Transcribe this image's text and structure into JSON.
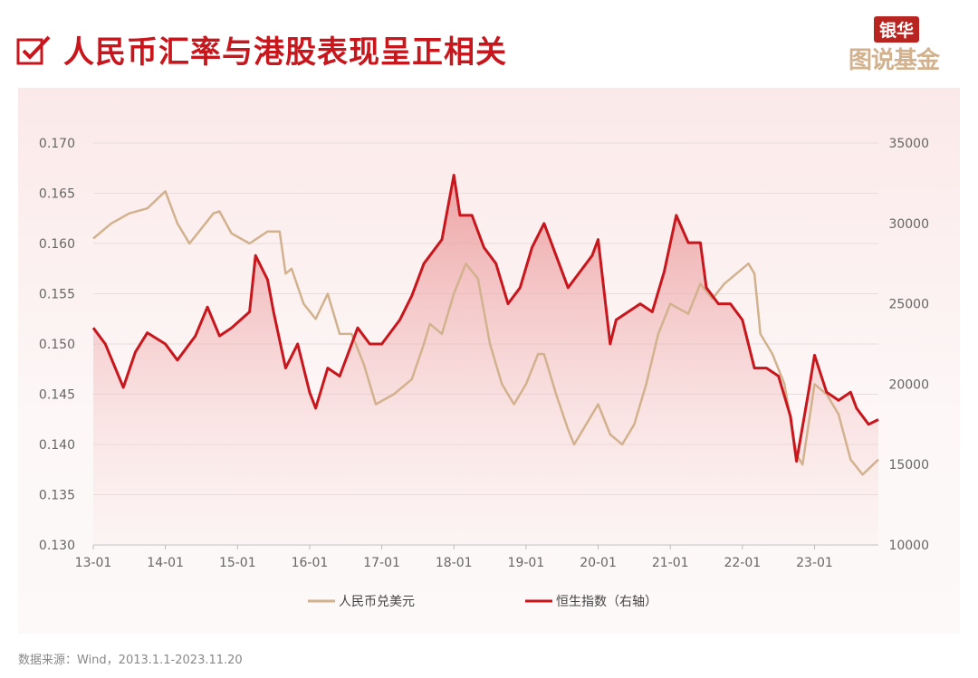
{
  "header": {
    "title": "人民币汇率与港股表现呈正相关",
    "icon": "checkbox-checked-icon",
    "logo_top": "银华",
    "logo_bottom": "图说基金"
  },
  "source": "数据来源：Wind，2013.1.1-2023.11.20",
  "colors": {
    "rmb": "#d2b28e",
    "hsi": "#c8161d",
    "accent": "#c8161d"
  },
  "chart_data": {
    "type": "line",
    "x_ticks": [
      "13-01",
      "14-01",
      "15-01",
      "16-01",
      "17-01",
      "18-01",
      "19-01",
      "20-01",
      "21-01",
      "22-01",
      "23-01"
    ],
    "y_left": {
      "ticks": [
        "0.130",
        "0.135",
        "0.140",
        "0.145",
        "0.150",
        "0.155",
        "0.160",
        "0.165",
        "0.170"
      ],
      "range": [
        0.13,
        0.17
      ]
    },
    "y_right": {
      "ticks": [
        "10000",
        "15000",
        "20000",
        "25000",
        "30000",
        "35000"
      ],
      "range": [
        10000,
        35000
      ]
    },
    "x_range": [
      "2013-01-01",
      "2023-11-20"
    ],
    "grid": true,
    "legend": "bottom",
    "series": [
      {
        "name": "人民币兑美元",
        "axis": "left",
        "color": "#d2b28e",
        "points": [
          [
            "2013-01",
            0.1605
          ],
          [
            "2013-04",
            0.162
          ],
          [
            "2013-07",
            0.163
          ],
          [
            "2013-10",
            0.1635
          ],
          [
            "2014-01",
            0.1652
          ],
          [
            "2014-03",
            0.162
          ],
          [
            "2014-05",
            0.16
          ],
          [
            "2014-07",
            0.1615
          ],
          [
            "2014-09",
            0.163
          ],
          [
            "2014-10",
            0.1632
          ],
          [
            "2014-12",
            0.161
          ],
          [
            "2015-03",
            0.16
          ],
          [
            "2015-06",
            0.1612
          ],
          [
            "2015-08",
            0.1612
          ],
          [
            "2015-09",
            0.157
          ],
          [
            "2015-10",
            0.1575
          ],
          [
            "2015-12",
            0.154
          ],
          [
            "2016-02",
            0.1525
          ],
          [
            "2016-04",
            0.155
          ],
          [
            "2016-06",
            0.151
          ],
          [
            "2016-08",
            0.151
          ],
          [
            "2016-10",
            0.148
          ],
          [
            "2016-12",
            0.144
          ],
          [
            "2017-03",
            0.145
          ],
          [
            "2017-06",
            0.1465
          ],
          [
            "2017-08",
            0.15
          ],
          [
            "2017-09",
            0.152
          ],
          [
            "2017-11",
            0.151
          ],
          [
            "2018-01",
            0.155
          ],
          [
            "2018-03",
            0.158
          ],
          [
            "2018-05",
            0.1565
          ],
          [
            "2018-07",
            0.15
          ],
          [
            "2018-09",
            0.146
          ],
          [
            "2018-11",
            0.144
          ],
          [
            "2019-01",
            0.146
          ],
          [
            "2019-03",
            0.149
          ],
          [
            "2019-04",
            0.149
          ],
          [
            "2019-06",
            0.145
          ],
          [
            "2019-08",
            0.1415
          ],
          [
            "2019-09",
            0.14
          ],
          [
            "2019-11",
            0.142
          ],
          [
            "2020-01",
            0.144
          ],
          [
            "2020-03",
            0.141
          ],
          [
            "2020-05",
            0.14
          ],
          [
            "2020-07",
            0.142
          ],
          [
            "2020-09",
            0.146
          ],
          [
            "2020-11",
            0.151
          ],
          [
            "2021-01",
            0.154
          ],
          [
            "2021-04",
            0.153
          ],
          [
            "2021-06",
            0.156
          ],
          [
            "2021-08",
            0.1545
          ],
          [
            "2021-10",
            0.156
          ],
          [
            "2021-12",
            0.157
          ],
          [
            "2022-02",
            0.158
          ],
          [
            "2022-03",
            0.157
          ],
          [
            "2022-04",
            0.151
          ],
          [
            "2022-06",
            0.149
          ],
          [
            "2022-08",
            0.146
          ],
          [
            "2022-10",
            0.139
          ],
          [
            "2022-11",
            0.138
          ],
          [
            "2023-01",
            0.146
          ],
          [
            "2023-03",
            0.145
          ],
          [
            "2023-05",
            0.143
          ],
          [
            "2023-07",
            0.1385
          ],
          [
            "2023-09",
            0.137
          ],
          [
            "2023-11-20",
            0.1385
          ]
        ]
      },
      {
        "name": "恒生指数（右轴）",
        "axis": "right",
        "color": "#c8161d",
        "points": [
          [
            "2013-01",
            23500
          ],
          [
            "2013-03",
            22500
          ],
          [
            "2013-06",
            19800
          ],
          [
            "2013-08",
            22000
          ],
          [
            "2013-10",
            23200
          ],
          [
            "2014-01",
            22500
          ],
          [
            "2014-03",
            21500
          ],
          [
            "2014-06",
            23000
          ],
          [
            "2014-08",
            24800
          ],
          [
            "2014-10",
            23000
          ],
          [
            "2014-12",
            23500
          ],
          [
            "2015-03",
            24500
          ],
          [
            "2015-04",
            28000
          ],
          [
            "2015-06",
            26500
          ],
          [
            "2015-07",
            24500
          ],
          [
            "2015-09",
            21000
          ],
          [
            "2015-11",
            22500
          ],
          [
            "2016-01",
            19500
          ],
          [
            "2016-02",
            18500
          ],
          [
            "2016-04",
            21000
          ],
          [
            "2016-06",
            20500
          ],
          [
            "2016-09",
            23500
          ],
          [
            "2016-11",
            22500
          ],
          [
            "2017-01",
            22500
          ],
          [
            "2017-04",
            24000
          ],
          [
            "2017-06",
            25500
          ],
          [
            "2017-08",
            27500
          ],
          [
            "2017-11",
            29000
          ],
          [
            "2018-01",
            33000
          ],
          [
            "2018-02",
            30500
          ],
          [
            "2018-04",
            30500
          ],
          [
            "2018-06",
            28500
          ],
          [
            "2018-08",
            27500
          ],
          [
            "2018-10",
            25000
          ],
          [
            "2018-12",
            26000
          ],
          [
            "2019-02",
            28500
          ],
          [
            "2019-04",
            30000
          ],
          [
            "2019-06",
            28000
          ],
          [
            "2019-08",
            26000
          ],
          [
            "2019-10",
            27000
          ],
          [
            "2019-12",
            28000
          ],
          [
            "2020-01",
            29000
          ],
          [
            "2020-03",
            22500
          ],
          [
            "2020-04",
            24000
          ],
          [
            "2020-06",
            24500
          ],
          [
            "2020-08",
            25000
          ],
          [
            "2020-10",
            24500
          ],
          [
            "2020-12",
            27000
          ],
          [
            "2021-02",
            30500
          ],
          [
            "2021-04",
            28800
          ],
          [
            "2021-06",
            28800
          ],
          [
            "2021-07",
            26000
          ],
          [
            "2021-09",
            25000
          ],
          [
            "2021-11",
            25000
          ],
          [
            "2022-01",
            24000
          ],
          [
            "2022-03",
            21000
          ],
          [
            "2022-05",
            21000
          ],
          [
            "2022-07",
            20500
          ],
          [
            "2022-09",
            18000
          ],
          [
            "2022-10",
            15200
          ],
          [
            "2022-12",
            19500
          ],
          [
            "2023-01",
            21800
          ],
          [
            "2023-03",
            19500
          ],
          [
            "2023-05",
            19000
          ],
          [
            "2023-07",
            19500
          ],
          [
            "2023-08",
            18500
          ],
          [
            "2023-10",
            17500
          ],
          [
            "2023-11-20",
            17800
          ]
        ]
      }
    ]
  }
}
